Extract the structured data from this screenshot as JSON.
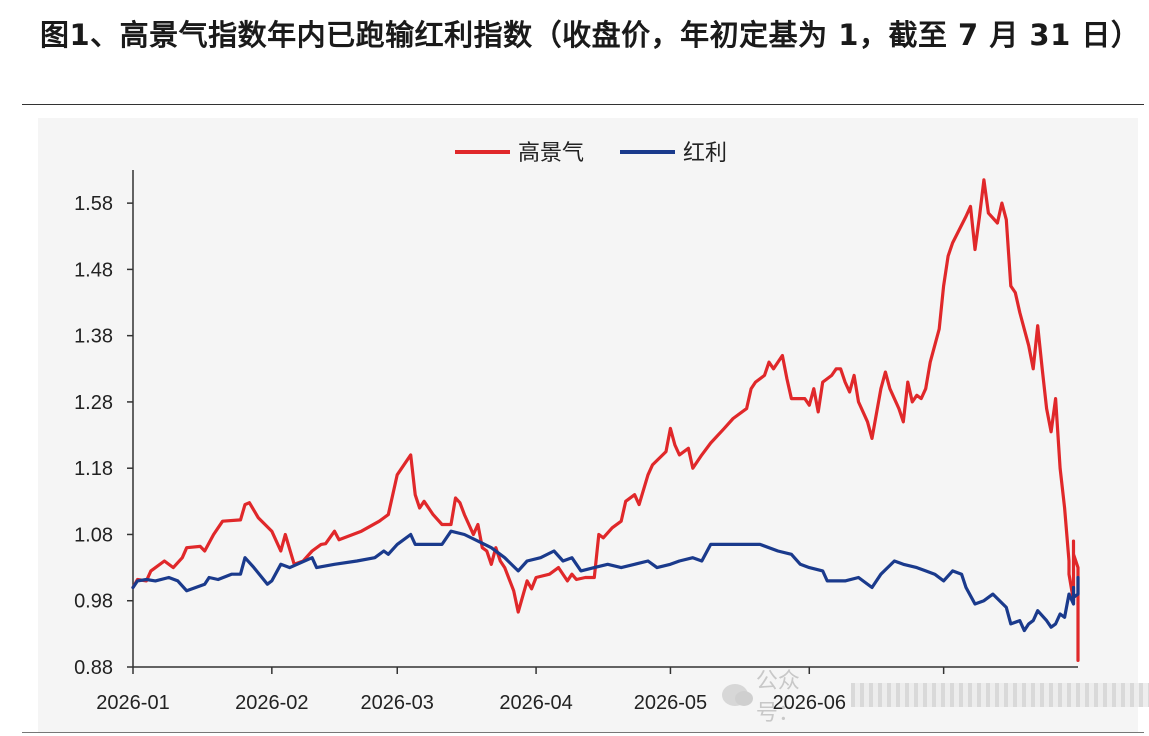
{
  "title": "图1、高景气指数年内已跑输红利指数（收盘价，年初定基为 1，截至 7 月 31 日）",
  "watermark": {
    "icon": "wechat-icon",
    "text": "公众号："
  },
  "colors": {
    "high": "#e0282a",
    "dividend": "#1a3a8c",
    "axis": "#333333"
  },
  "chart_data": {
    "type": "line",
    "title": "",
    "xlabel": "",
    "ylabel": "",
    "ylim": [
      0.88,
      1.63
    ],
    "yticks": [
      0.88,
      0.98,
      1.08,
      1.18,
      1.28,
      1.38,
      1.48,
      1.58
    ],
    "ytick_labels": [
      "0.88",
      "0.98",
      "1.08",
      "1.18",
      "1.28",
      "1.38",
      "1.48",
      "1.58"
    ],
    "xlim": [
      "2026-01-01",
      "2026-07-31"
    ],
    "xticks": [
      "2026-01-01",
      "2026-02-01",
      "2026-03-01",
      "2026-04-01",
      "2026-05-01",
      "2026-06-01",
      "2026-07-01"
    ],
    "xtick_labels": [
      "2026-01",
      "2026-02",
      "2026-03",
      "2026-04",
      "2026-05",
      "2026-06",
      ""
    ],
    "legend": "top-center",
    "grid": false,
    "series": [
      {
        "name": "高景气",
        "color": "#e0282a",
        "points": [
          [
            "2026-01-01",
            1.0
          ],
          [
            "2026-01-02",
            1.012
          ],
          [
            "2026-01-04",
            1.01
          ],
          [
            "2026-01-05",
            1.025
          ],
          [
            "2026-01-08",
            1.04
          ],
          [
            "2026-01-10",
            1.03
          ],
          [
            "2026-01-12",
            1.045
          ],
          [
            "2026-01-13",
            1.06
          ],
          [
            "2026-01-16",
            1.062
          ],
          [
            "2026-01-17",
            1.055
          ],
          [
            "2026-01-19",
            1.08
          ],
          [
            "2026-01-21",
            1.1
          ],
          [
            "2026-01-25",
            1.102
          ],
          [
            "2026-01-26",
            1.125
          ],
          [
            "2026-01-27",
            1.128
          ],
          [
            "2026-01-29",
            1.105
          ],
          [
            "2026-02-01",
            1.085
          ],
          [
            "2026-02-03",
            1.055
          ],
          [
            "2026-02-04",
            1.08
          ],
          [
            "2026-02-06",
            1.035
          ],
          [
            "2026-02-08",
            1.04
          ],
          [
            "2026-02-10",
            1.055
          ],
          [
            "2026-02-12",
            1.065
          ],
          [
            "2026-02-13",
            1.066
          ],
          [
            "2026-02-15",
            1.085
          ],
          [
            "2026-02-16",
            1.072
          ],
          [
            "2026-02-21",
            1.085
          ],
          [
            "2026-02-25",
            1.1
          ],
          [
            "2026-02-27",
            1.11
          ],
          [
            "2026-03-01",
            1.17
          ],
          [
            "2026-03-04",
            1.2
          ],
          [
            "2026-03-05",
            1.14
          ],
          [
            "2026-03-06",
            1.12
          ],
          [
            "2026-03-07",
            1.13
          ],
          [
            "2026-03-09",
            1.11
          ],
          [
            "2026-03-11",
            1.095
          ],
          [
            "2026-03-13",
            1.095
          ],
          [
            "2026-03-14",
            1.135
          ],
          [
            "2026-03-15",
            1.128
          ],
          [
            "2026-03-16",
            1.11
          ],
          [
            "2026-03-18",
            1.08
          ],
          [
            "2026-03-19",
            1.095
          ],
          [
            "2026-03-20",
            1.06
          ],
          [
            "2026-03-21",
            1.055
          ],
          [
            "2026-03-22",
            1.035
          ],
          [
            "2026-03-23",
            1.06
          ],
          [
            "2026-03-24",
            1.04
          ],
          [
            "2026-03-25",
            1.03
          ],
          [
            "2026-03-27",
            0.995
          ],
          [
            "2026-03-28",
            0.963
          ],
          [
            "2026-03-30",
            1.01
          ],
          [
            "2026-03-31",
            0.998
          ],
          [
            "2026-04-01",
            1.015
          ],
          [
            "2026-04-04",
            1.02
          ],
          [
            "2026-04-06",
            1.03
          ],
          [
            "2026-04-08",
            1.01
          ],
          [
            "2026-04-09",
            1.02
          ],
          [
            "2026-04-10",
            1.012
          ],
          [
            "2026-04-12",
            1.015
          ],
          [
            "2026-04-14",
            1.015
          ],
          [
            "2026-04-15",
            1.08
          ],
          [
            "2026-04-16",
            1.075
          ],
          [
            "2026-04-18",
            1.09
          ],
          [
            "2026-04-20",
            1.1
          ],
          [
            "2026-04-21",
            1.13
          ],
          [
            "2026-04-23",
            1.14
          ],
          [
            "2026-04-24",
            1.125
          ],
          [
            "2026-04-26",
            1.17
          ],
          [
            "2026-04-27",
            1.185
          ],
          [
            "2026-04-30",
            1.205
          ],
          [
            "2026-05-01",
            1.24
          ],
          [
            "2026-05-02",
            1.215
          ],
          [
            "2026-05-03",
            1.2
          ],
          [
            "2026-05-05",
            1.21
          ],
          [
            "2026-05-06",
            1.18
          ],
          [
            "2026-05-08",
            1.2
          ],
          [
            "2026-05-10",
            1.218
          ],
          [
            "2026-05-13",
            1.24
          ],
          [
            "2026-05-15",
            1.255
          ],
          [
            "2026-05-18",
            1.27
          ],
          [
            "2026-05-19",
            1.3
          ],
          [
            "2026-05-20",
            1.31
          ],
          [
            "2026-05-22",
            1.32
          ],
          [
            "2026-05-23",
            1.34
          ],
          [
            "2026-05-24",
            1.33
          ],
          [
            "2026-05-26",
            1.35
          ],
          [
            "2026-05-27",
            1.315
          ],
          [
            "2026-05-28",
            1.285
          ],
          [
            "2026-05-31",
            1.285
          ],
          [
            "2026-06-01",
            1.275
          ],
          [
            "2026-06-02",
            1.3
          ],
          [
            "2026-06-03",
            1.265
          ],
          [
            "2026-06-04",
            1.31
          ],
          [
            "2026-06-06",
            1.32
          ],
          [
            "2026-06-07",
            1.33
          ],
          [
            "2026-06-08",
            1.33
          ],
          [
            "2026-06-09",
            1.31
          ],
          [
            "2026-06-10",
            1.295
          ],
          [
            "2026-06-11",
            1.32
          ],
          [
            "2026-06-12",
            1.28
          ],
          [
            "2026-06-14",
            1.25
          ],
          [
            "2026-06-15",
            1.225
          ],
          [
            "2026-06-17",
            1.3
          ],
          [
            "2026-06-18",
            1.325
          ],
          [
            "2026-06-19",
            1.3
          ],
          [
            "2026-06-21",
            1.27
          ],
          [
            "2026-06-22",
            1.25
          ],
          [
            "2026-06-23",
            1.31
          ],
          [
            "2026-06-24",
            1.28
          ],
          [
            "2026-06-25",
            1.29
          ],
          [
            "2026-06-26",
            1.285
          ],
          [
            "2026-06-27",
            1.3
          ],
          [
            "2026-06-28",
            1.34
          ],
          [
            "2026-06-30",
            1.39
          ],
          [
            "2026-07-01",
            1.455
          ],
          [
            "2026-07-02",
            1.5
          ],
          [
            "2026-07-03",
            1.52
          ],
          [
            "2026-07-06",
            1.56
          ],
          [
            "2026-07-07",
            1.575
          ],
          [
            "2026-07-08",
            1.51
          ],
          [
            "2026-07-09",
            1.56
          ],
          [
            "2026-07-10",
            1.615
          ],
          [
            "2026-07-11",
            1.565
          ],
          [
            "2026-07-13",
            1.55
          ],
          [
            "2026-07-14",
            1.58
          ],
          [
            "2026-07-15",
            1.555
          ],
          [
            "2026-07-16",
            1.455
          ],
          [
            "2026-07-17",
            1.445
          ],
          [
            "2026-07-18",
            1.415
          ],
          [
            "2026-07-20",
            1.365
          ],
          [
            "2026-07-21",
            1.33
          ],
          [
            "2026-07-22",
            1.395
          ],
          [
            "2026-07-23",
            1.33
          ],
          [
            "2026-07-24",
            1.27
          ],
          [
            "2026-07-25",
            1.235
          ],
          [
            "2026-07-26",
            1.285
          ],
          [
            "2026-07-27",
            1.18
          ],
          [
            "2026-07-28",
            1.12
          ],
          [
            "2026-07-29",
            1.04
          ],
          [
            "2026-07-29",
            1.02
          ],
          [
            "2026-07-30",
            0.98
          ],
          [
            "2026-07-30",
            1.07
          ],
          [
            "2026-07-30",
            1.035
          ],
          [
            "2026-07-30",
            1.02
          ],
          [
            "2026-07-30",
            1.05
          ],
          [
            "2026-07-30",
            1.05
          ],
          [
            "2026-07-31",
            1.03
          ],
          [
            "2026-07-31",
            0.97
          ],
          [
            "2026-07-31",
            0.95
          ],
          [
            "2026-07-31",
            0.89
          ],
          [
            "2026-07-31",
            0.92
          ]
        ]
      },
      {
        "name": "红利",
        "color": "#1a3a8c",
        "points": [
          [
            "2026-01-01",
            1.0
          ],
          [
            "2026-01-02",
            1.01
          ],
          [
            "2026-01-04",
            1.012
          ],
          [
            "2026-01-06",
            1.01
          ],
          [
            "2026-01-09",
            1.015
          ],
          [
            "2026-01-11",
            1.01
          ],
          [
            "2026-01-13",
            0.995
          ],
          [
            "2026-01-15",
            1.0
          ],
          [
            "2026-01-17",
            1.005
          ],
          [
            "2026-01-18",
            1.015
          ],
          [
            "2026-01-20",
            1.012
          ],
          [
            "2026-01-23",
            1.02
          ],
          [
            "2026-01-25",
            1.02
          ],
          [
            "2026-01-26",
            1.045
          ],
          [
            "2026-01-28",
            1.03
          ],
          [
            "2026-01-31",
            1.005
          ],
          [
            "2026-02-01",
            1.01
          ],
          [
            "2026-02-03",
            1.035
          ],
          [
            "2026-02-05",
            1.03
          ],
          [
            "2026-02-10",
            1.045
          ],
          [
            "2026-02-11",
            1.03
          ],
          [
            "2026-02-15",
            1.035
          ],
          [
            "2026-02-20",
            1.04
          ],
          [
            "2026-02-24",
            1.045
          ],
          [
            "2026-02-26",
            1.055
          ],
          [
            "2026-02-27",
            1.05
          ],
          [
            "2026-03-01",
            1.065
          ],
          [
            "2026-03-04",
            1.08
          ],
          [
            "2026-03-05",
            1.065
          ],
          [
            "2026-03-08",
            1.065
          ],
          [
            "2026-03-11",
            1.065
          ],
          [
            "2026-03-13",
            1.085
          ],
          [
            "2026-03-16",
            1.08
          ],
          [
            "2026-03-19",
            1.07
          ],
          [
            "2026-03-22",
            1.06
          ],
          [
            "2026-03-25",
            1.045
          ],
          [
            "2026-03-28",
            1.025
          ],
          [
            "2026-03-30",
            1.04
          ],
          [
            "2026-04-02",
            1.045
          ],
          [
            "2026-04-05",
            1.055
          ],
          [
            "2026-04-07",
            1.04
          ],
          [
            "2026-04-09",
            1.045
          ],
          [
            "2026-04-11",
            1.025
          ],
          [
            "2026-04-14",
            1.03
          ],
          [
            "2026-04-17",
            1.035
          ],
          [
            "2026-04-20",
            1.03
          ],
          [
            "2026-04-23",
            1.035
          ],
          [
            "2026-04-26",
            1.04
          ],
          [
            "2026-04-28",
            1.03
          ],
          [
            "2026-05-01",
            1.035
          ],
          [
            "2026-05-03",
            1.04
          ],
          [
            "2026-05-06",
            1.045
          ],
          [
            "2026-05-08",
            1.04
          ],
          [
            "2026-05-10",
            1.065
          ],
          [
            "2026-05-14",
            1.065
          ],
          [
            "2026-05-19",
            1.065
          ],
          [
            "2026-05-21",
            1.065
          ],
          [
            "2026-05-25",
            1.055
          ],
          [
            "2026-05-28",
            1.05
          ],
          [
            "2026-05-30",
            1.035
          ],
          [
            "2026-06-01",
            1.03
          ],
          [
            "2026-06-04",
            1.025
          ],
          [
            "2026-06-05",
            1.01
          ],
          [
            "2026-06-09",
            1.01
          ],
          [
            "2026-06-12",
            1.015
          ],
          [
            "2026-06-15",
            1.0
          ],
          [
            "2026-06-17",
            1.02
          ],
          [
            "2026-06-20",
            1.04
          ],
          [
            "2026-06-22",
            1.035
          ],
          [
            "2026-06-25",
            1.03
          ],
          [
            "2026-06-27",
            1.025
          ],
          [
            "2026-06-29",
            1.02
          ],
          [
            "2026-07-01",
            1.01
          ],
          [
            "2026-07-03",
            1.025
          ],
          [
            "2026-07-05",
            1.02
          ],
          [
            "2026-07-06",
            1.0
          ],
          [
            "2026-07-08",
            0.975
          ],
          [
            "2026-07-10",
            0.98
          ],
          [
            "2026-07-12",
            0.99
          ],
          [
            "2026-07-15",
            0.97
          ],
          [
            "2026-07-16",
            0.945
          ],
          [
            "2026-07-18",
            0.95
          ],
          [
            "2026-07-19",
            0.935
          ],
          [
            "2026-07-20",
            0.945
          ],
          [
            "2026-07-21",
            0.95
          ],
          [
            "2026-07-22",
            0.965
          ],
          [
            "2026-07-24",
            0.95
          ],
          [
            "2026-07-25",
            0.94
          ],
          [
            "2026-07-26",
            0.945
          ],
          [
            "2026-07-27",
            0.96
          ],
          [
            "2026-07-28",
            0.955
          ],
          [
            "2026-07-29",
            0.99
          ],
          [
            "2026-07-30",
            0.975
          ],
          [
            "2026-07-30",
            1.0
          ],
          [
            "2026-07-30",
            0.985
          ],
          [
            "2026-07-31",
            0.99
          ],
          [
            "2026-07-31",
            1.0
          ],
          [
            "2026-07-31",
            1.01
          ],
          [
            "2026-07-31",
            1.015
          ],
          [
            "2026-07-31",
            1.012
          ]
        ]
      }
    ]
  }
}
